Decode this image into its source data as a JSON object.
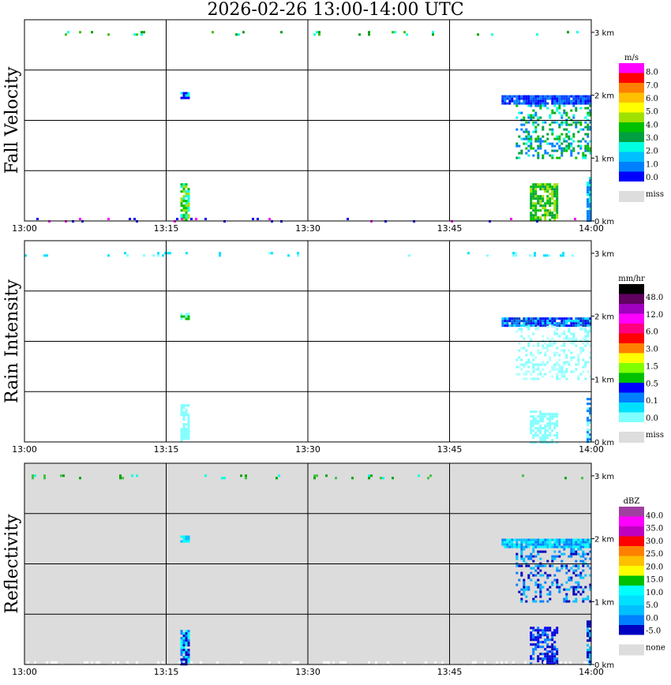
{
  "title": "2026-02-26  13:00-14:00 UTC",
  "chart_data": [
    {
      "type": "heatmap",
      "ylabel": "Fall Velocity",
      "background": "#ffffff",
      "xlim": [
        0,
        60
      ],
      "ylim": [
        0,
        3.2
      ],
      "xticks": [
        {
          "v": 0,
          "label": "13:00"
        },
        {
          "v": 15,
          "label": "13:15"
        },
        {
          "v": 30,
          "label": "13:30"
        },
        {
          "v": 45,
          "label": "13:45"
        },
        {
          "v": 60,
          "label": "14:00"
        }
      ],
      "yticks": [
        {
          "v": 0,
          "label": "0 km"
        },
        {
          "v": 1,
          "label": "1 km"
        },
        {
          "v": 2,
          "label": "2 km"
        },
        {
          "v": 3,
          "label": "3 km"
        }
      ],
      "legend": {
        "unit": "m/s",
        "colors": [
          "#ff00ff",
          "#ff0000",
          "#ff7f00",
          "#ffc000",
          "#ffff00",
          "#a0e000",
          "#00c000",
          "#00a040",
          "#00ffe0",
          "#00c0ff",
          "#0080ff",
          "#0000ff"
        ],
        "labels": [
          "8.0",
          "7.0",
          "6.0",
          "5.0",
          "4.0",
          "3.0",
          "2.0",
          "1.0",
          "0.0"
        ],
        "miss_color": "#dddddd",
        "miss_label": "miss"
      },
      "regions": [
        {
          "t0": 0,
          "t1": 60,
          "h0": 2.95,
          "h1": 3.02,
          "colors": [
            "#00a000",
            "#40c000",
            "#00ffe0"
          ],
          "density": 0.35,
          "stripe": true
        },
        {
          "t0": 16.5,
          "t1": 17.5,
          "h0": 1.95,
          "h1": 2.05,
          "colors": [
            "#0000ff",
            "#00ffe0"
          ],
          "density": 0.8
        },
        {
          "t0": 50.5,
          "t1": 60,
          "h0": 1.85,
          "h1": 2.0,
          "colors": [
            "#0000ff",
            "#0040ff",
            "#0080ff"
          ],
          "density": 0.95
        },
        {
          "t0": 52,
          "t1": 60,
          "h0": 1.0,
          "h1": 1.85,
          "colors": [
            "#00c000",
            "#00ffe0",
            "#0080ff",
            "#00a040"
          ],
          "density": 0.35
        },
        {
          "t0": 16.5,
          "t1": 17.5,
          "h0": 0.0,
          "h1": 0.6,
          "colors": [
            "#00c000",
            "#00ffe0",
            "#a0e000"
          ],
          "density": 0.8
        },
        {
          "t0": 53.5,
          "t1": 56.5,
          "h0": 0.0,
          "h1": 0.6,
          "colors": [
            "#00c000",
            "#a0e000",
            "#00a040"
          ],
          "density": 0.75
        },
        {
          "t0": 59.5,
          "t1": 60,
          "h0": 0.0,
          "h1": 0.7,
          "colors": [
            "#00ffe0",
            "#0080ff"
          ],
          "density": 0.8
        },
        {
          "t0": 0,
          "t1": 60,
          "h0": 0.0,
          "h1": 0.05,
          "colors": [
            "#ff00ff",
            "#0000ff"
          ],
          "density": 0.08
        }
      ]
    },
    {
      "type": "heatmap",
      "ylabel": "Rain Intensity",
      "background": "#ffffff",
      "xlim": [
        0,
        60
      ],
      "ylim": [
        0,
        3.2
      ],
      "xticks": [
        {
          "v": 0,
          "label": "13:00"
        },
        {
          "v": 15,
          "label": "13:15"
        },
        {
          "v": 30,
          "label": "13:30"
        },
        {
          "v": 45,
          "label": "13:45"
        },
        {
          "v": 60,
          "label": "14:00"
        }
      ],
      "yticks": [
        {
          "v": 0,
          "label": "0 km"
        },
        {
          "v": 1,
          "label": "1 km"
        },
        {
          "v": 2,
          "label": "2 km"
        },
        {
          "v": 3,
          "label": "3 km"
        }
      ],
      "legend": {
        "unit": "mm/hr",
        "colors": [
          "#000000",
          "#600060",
          "#a000c0",
          "#ff00ff",
          "#ff0080",
          "#ff0000",
          "#ff8000",
          "#ffff00",
          "#80ff00",
          "#00c000",
          "#0000ff",
          "#0080ff",
          "#00e0ff",
          "#80ffff"
        ],
        "labels": [
          "48.0",
          "12.0",
          "6.0",
          "3.0",
          "1.5",
          "0.5",
          "0.1",
          "0.0"
        ],
        "miss_color": "#dddddd",
        "miss_label": "miss"
      },
      "regions": [
        {
          "t0": 0,
          "t1": 60,
          "h0": 2.95,
          "h1": 3.02,
          "colors": [
            "#80ffff",
            "#00e0ff"
          ],
          "density": 0.35,
          "stripe": true
        },
        {
          "t0": 16.5,
          "t1": 17.5,
          "h0": 1.95,
          "h1": 2.05,
          "colors": [
            "#80ffff",
            "#00c000"
          ],
          "density": 0.8
        },
        {
          "t0": 50.5,
          "t1": 60,
          "h0": 1.85,
          "h1": 1.98,
          "colors": [
            "#0000ff",
            "#0040c0",
            "#0080ff",
            "#00e0ff"
          ],
          "density": 0.95
        },
        {
          "t0": 52,
          "t1": 60,
          "h0": 1.0,
          "h1": 1.85,
          "colors": [
            "#80ffff",
            "#b0ffff"
          ],
          "density": 0.3
        },
        {
          "t0": 16.5,
          "t1": 17.5,
          "h0": 0.0,
          "h1": 0.6,
          "colors": [
            "#80ffff"
          ],
          "density": 0.7
        },
        {
          "t0": 53.5,
          "t1": 56.5,
          "h0": 0.0,
          "h1": 0.5,
          "colors": [
            "#80ffff"
          ],
          "density": 0.6
        },
        {
          "t0": 59.5,
          "t1": 60,
          "h0": 0.0,
          "h1": 0.7,
          "colors": [
            "#80ffff",
            "#0080ff"
          ],
          "density": 0.7
        }
      ]
    },
    {
      "type": "heatmap",
      "ylabel": "Reflectivity",
      "background": "#dcdcdc",
      "xlim": [
        0,
        60
      ],
      "ylim": [
        0,
        3.2
      ],
      "xticks": [
        {
          "v": 0,
          "label": "13:00"
        },
        {
          "v": 15,
          "label": "13:15"
        },
        {
          "v": 30,
          "label": "13:30"
        },
        {
          "v": 45,
          "label": "13:45"
        },
        {
          "v": 60,
          "label": "14:00"
        }
      ],
      "yticks": [
        {
          "v": 0,
          "label": "0 km"
        },
        {
          "v": 1,
          "label": "1 km"
        },
        {
          "v": 2,
          "label": "2 km"
        },
        {
          "v": 3,
          "label": "3 km"
        }
      ],
      "legend": {
        "unit": "dBZ",
        "colors": [
          "#a040a0",
          "#ff00ff",
          "#c000c0",
          "#ff0000",
          "#ff8000",
          "#ffc000",
          "#ffff00",
          "#00c000",
          "#00ffff",
          "#00e0ff",
          "#00c0ff",
          "#0080ff",
          "#0000c0"
        ],
        "labels": [
          "40.0",
          "35.0",
          "30.0",
          "25.0",
          "20.0",
          "15.0",
          "10.0",
          "5.0",
          "0.0",
          "-5.0"
        ],
        "miss_color": "#dddddd",
        "miss_label": "none"
      },
      "regions": [
        {
          "t0": 0,
          "t1": 60,
          "h0": 2.95,
          "h1": 3.02,
          "colors": [
            "#00a000",
            "#00ffe0",
            "#40c040"
          ],
          "density": 0.35,
          "stripe": true
        },
        {
          "t0": 16.5,
          "t1": 17.5,
          "h0": 1.95,
          "h1": 2.05,
          "colors": [
            "#00c0ff",
            "#00ffff"
          ],
          "density": 0.8
        },
        {
          "t0": 50.5,
          "t1": 60,
          "h0": 1.85,
          "h1": 2.0,
          "colors": [
            "#00ffff",
            "#00c0ff",
            "#0080ff"
          ],
          "density": 0.95
        },
        {
          "t0": 52,
          "t1": 60,
          "h0": 1.0,
          "h1": 1.85,
          "colors": [
            "#0000c0",
            "#0080ff",
            "#00c0ff"
          ],
          "density": 0.3
        },
        {
          "t0": 16.5,
          "t1": 17.5,
          "h0": 0.0,
          "h1": 0.55,
          "colors": [
            "#0000c0",
            "#0080ff",
            "#00ffff"
          ],
          "density": 0.8
        },
        {
          "t0": 53.5,
          "t1": 56.5,
          "h0": 0.0,
          "h1": 0.6,
          "colors": [
            "#0000c0",
            "#0000ff",
            "#0080ff"
          ],
          "density": 0.6
        },
        {
          "t0": 59.5,
          "t1": 60,
          "h0": 0.0,
          "h1": 0.7,
          "colors": [
            "#0000c0",
            "#00c0ff"
          ],
          "density": 0.7
        },
        {
          "t0": 0,
          "t1": 60,
          "h0": 0.0,
          "h1": 0.05,
          "colors": [
            "#ffffff"
          ],
          "density": 0.2
        }
      ]
    }
  ]
}
